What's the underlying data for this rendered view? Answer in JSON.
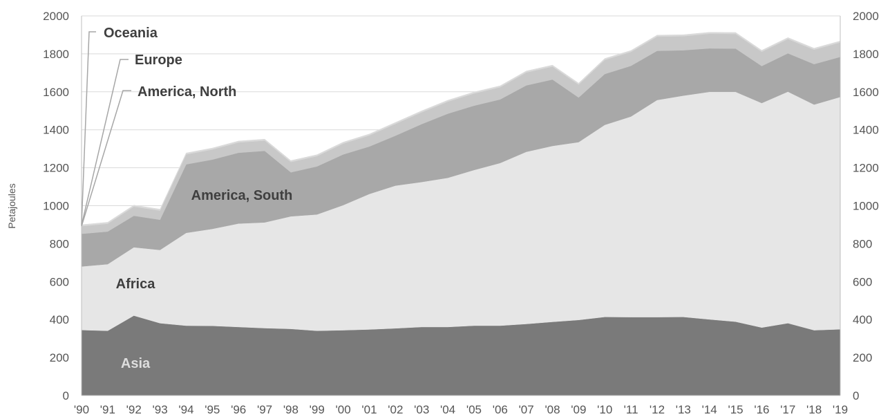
{
  "chart_data": {
    "type": "area",
    "stacked": true,
    "ylabel": "Petajoules",
    "ylim": [
      0,
      2000
    ],
    "yticks": [
      0,
      200,
      400,
      600,
      800,
      1000,
      1200,
      1400,
      1600,
      1800,
      2000
    ],
    "categories": [
      "'90",
      "'91",
      "'92",
      "'93",
      "'94",
      "'95",
      "'96",
      "'97",
      "'98",
      "'99",
      "'00",
      "'01",
      "'02",
      "'03",
      "'04",
      "'05",
      "'06",
      "'07",
      "'08",
      "'09",
      "'10",
      "'11",
      "'12",
      "'13",
      "'14",
      "'15",
      "'16",
      "'17",
      "'18",
      "'19"
    ],
    "series": [
      {
        "name": "Asia",
        "color": "#7a7a7a",
        "values": [
          345,
          341,
          421,
          381,
          368,
          367,
          361,
          355,
          351,
          341,
          344,
          348,
          354,
          361,
          361,
          368,
          368,
          377,
          388,
          398,
          414,
          413,
          413,
          414,
          401,
          389,
          358,
          381,
          344,
          349
        ]
      },
      {
        "name": "Africa",
        "color": "#e6e6e6",
        "values": [
          335,
          351,
          360,
          386,
          489,
          511,
          545,
          557,
          593,
          613,
          659,
          714,
          752,
          764,
          786,
          820,
          857,
          907,
          927,
          937,
          1012,
          1057,
          1144,
          1166,
          1199,
          1211,
          1183,
          1220,
          1189,
          1224
        ]
      },
      {
        "name": "America, South",
        "color": "#a8a8a8",
        "values": [
          172,
          172,
          166,
          159,
          361,
          365,
          373,
          377,
          232,
          253,
          267,
          250,
          263,
          305,
          338,
          339,
          335,
          350,
          350,
          235,
          268,
          267,
          259,
          239,
          229,
          228,
          195,
          202,
          213,
          211
        ]
      },
      {
        "name": "America, North",
        "color": "#c8c8c8",
        "values": [
          40,
          41,
          48,
          48,
          52,
          53,
          54,
          54,
          54,
          54,
          57,
          58,
          62,
          62,
          63,
          64,
          64,
          68,
          68,
          68,
          74,
          73,
          75,
          74,
          77,
          77,
          75,
          75,
          76,
          76
        ]
      },
      {
        "name": "Europe",
        "color": "#d7d7d7",
        "values": [
          5,
          5,
          5,
          5,
          5,
          5,
          5,
          5,
          5,
          5,
          5,
          5,
          5,
          5,
          5,
          5,
          5,
          5,
          5,
          5,
          5,
          5,
          5,
          5,
          5,
          5,
          5,
          5,
          5,
          5
        ]
      },
      {
        "name": "Oceania",
        "color": "#dcdcdc",
        "values": [
          3,
          3,
          3,
          3,
          3,
          3,
          3,
          3,
          3,
          3,
          3,
          3,
          3,
          3,
          3,
          3,
          3,
          3,
          3,
          3,
          3,
          3,
          3,
          3,
          3,
          3,
          3,
          3,
          3,
          3
        ]
      }
    ],
    "annotations": [
      {
        "text": "Oceania",
        "color": "#3f3f3f"
      },
      {
        "text": "Europe",
        "color": "#3f3f3f"
      },
      {
        "text": "America, North",
        "color": "#3f3f3f"
      },
      {
        "text": "America, South",
        "color": "#3f3f3f"
      },
      {
        "text": "Africa",
        "color": "#3f3f3f"
      },
      {
        "text": "Asia",
        "color": "#dedede"
      }
    ],
    "grid": true,
    "dual_y_axis": true
  }
}
